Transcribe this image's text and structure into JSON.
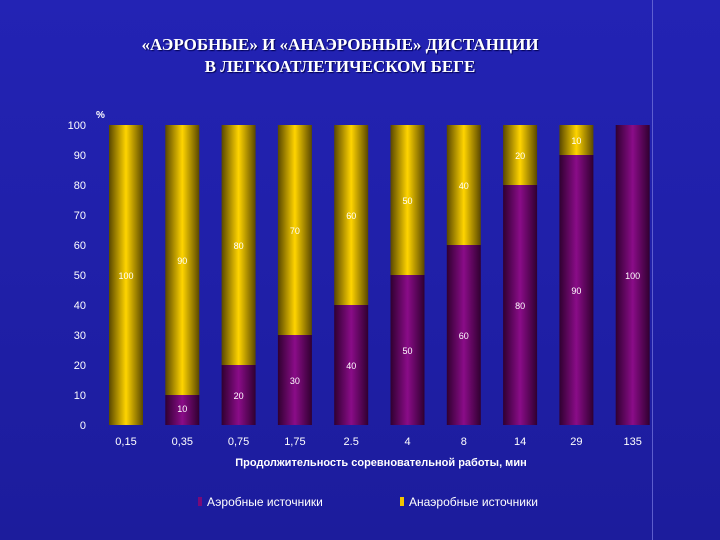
{
  "title_lines": [
    "«АЭРОБНЫЕ» И «АНАЭРОБНЫЕ» ДИСТАНЦИИ",
    "В ЛЕГКОАТЛЕТИЧЕСКОМ БЕГЕ"
  ],
  "chart_data": {
    "type": "bar",
    "stacked": true,
    "categories": [
      "0,15",
      "0,35",
      "0,75",
      "1,75",
      "2.5",
      "4",
      "8",
      "14",
      "29",
      "135"
    ],
    "series": [
      {
        "name": "Аэробные источники",
        "color": "#7a0a78",
        "values": [
          0,
          10,
          20,
          30,
          40,
          50,
          60,
          80,
          90,
          100
        ]
      },
      {
        "name": "Анаэробные источники",
        "color": "#f2c400",
        "values": [
          100,
          90,
          80,
          70,
          60,
          50,
          40,
          20,
          10,
          0
        ]
      }
    ],
    "data_labels": {
      "Аэробные источники": [
        "",
        "10",
        "20",
        "30",
        "40",
        "50",
        "60",
        "80",
        "90",
        "100"
      ],
      "Анаэробные источники": [
        "100",
        "90",
        "80",
        "70",
        "60",
        "50",
        "40",
        "20",
        "10",
        ""
      ]
    },
    "ylabel": "%",
    "xlabel": "Продолжительность соревновательной работы, мин",
    "ylim": [
      0,
      100
    ],
    "yticks": [
      "0",
      "10",
      "20",
      "30",
      "40",
      "50",
      "60",
      "70",
      "80",
      "90",
      "100"
    ],
    "legend_position": "bottom",
    "grid": false
  }
}
